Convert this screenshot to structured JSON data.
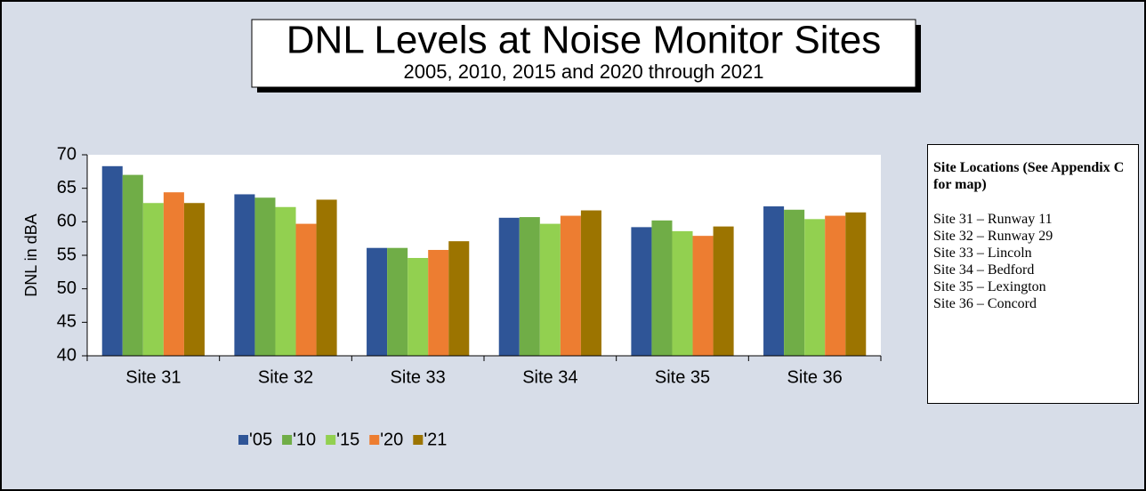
{
  "chart_data": {
    "type": "bar",
    "title": "DNL Levels at Noise Monitor Sites",
    "subtitle": "2005, 2010, 2015 and 2020 through 2021",
    "y_label": "DNL in dBA",
    "categories": [
      "Site 31",
      "Site 32",
      "Site 33",
      "Site 34",
      "Site 35",
      "Site 36"
    ],
    "series": [
      {
        "name": "'05",
        "color": "#2f5597",
        "values": [
          68.3,
          64.1,
          56.1,
          60.6,
          59.2,
          62.3
        ]
      },
      {
        "name": "'10",
        "color": "#70ad47",
        "values": [
          67.0,
          63.6,
          56.1,
          60.7,
          60.2,
          61.8
        ]
      },
      {
        "name": "'15",
        "color": "#92d050",
        "values": [
          62.8,
          62.2,
          54.6,
          59.7,
          58.6,
          60.4
        ]
      },
      {
        "name": "'20",
        "color": "#ed7d31",
        "values": [
          64.4,
          59.7,
          55.8,
          60.9,
          57.9,
          60.9
        ]
      },
      {
        "name": "'21",
        "color": "#9c7400",
        "values": [
          62.8,
          63.3,
          57.1,
          61.7,
          59.3,
          61.4
        ]
      }
    ],
    "ylim": [
      40,
      70
    ],
    "yticks": [
      40,
      45,
      50,
      55,
      60,
      65,
      70
    ],
    "grid": false,
    "legend": "bottom"
  },
  "site_locations": {
    "title": "Site Locations (See Appendix C for map)",
    "items": [
      "Site 31 – Runway 11",
      "Site 32 – Runway 29",
      "Site 33 – Lincoln",
      "Site 34 – Bedford",
      "Site 35 – Lexington",
      "Site 36 – Concord"
    ]
  }
}
